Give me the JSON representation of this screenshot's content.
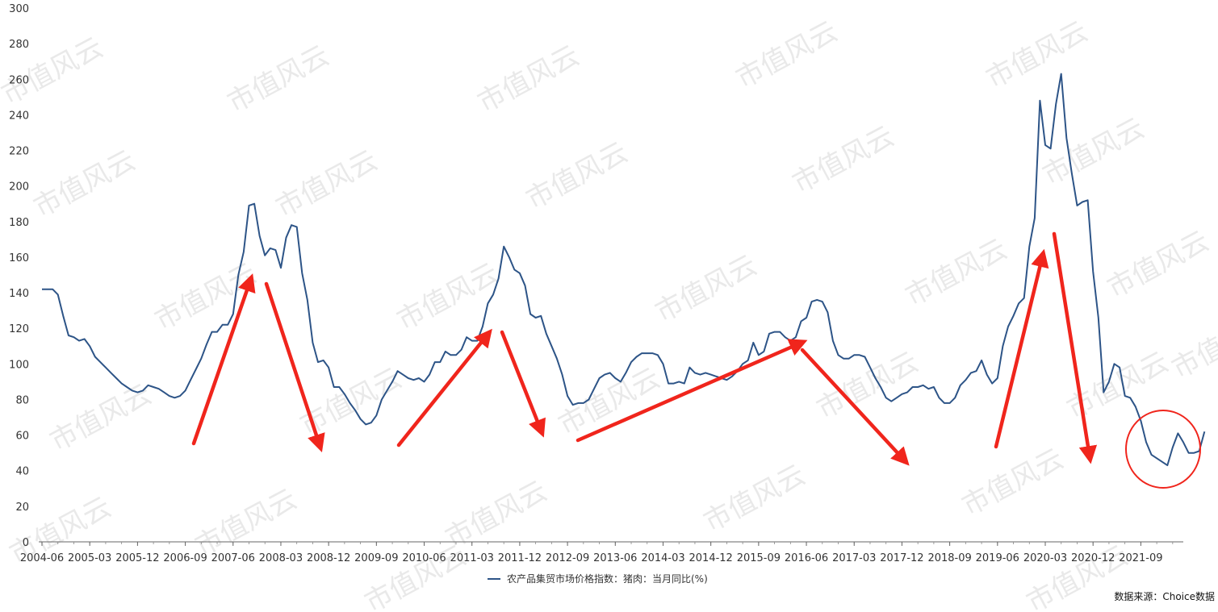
{
  "chart_data": {
    "type": "line",
    "ylim": [
      0,
      300
    ],
    "y_ticks": [
      "0",
      "20",
      "40",
      "60",
      "80",
      "100",
      "120",
      "140",
      "160",
      "180",
      "200",
      "220",
      "240",
      "260",
      "280",
      "300"
    ],
    "x_tick_labels": [
      "2004-06",
      "2005-03",
      "2005-12",
      "2006-09",
      "2007-06",
      "2008-03",
      "2008-12",
      "2009-09",
      "2010-06",
      "2011-03",
      "2011-12",
      "2012-09",
      "2013-06",
      "2014-03",
      "2014-12",
      "2015-09",
      "2016-06",
      "2017-03",
      "2017-12",
      "2018-09",
      "2019-06",
      "2020-03",
      "2020-12",
      "2021-09"
    ],
    "x_start": "2004-06",
    "x_end": "2022-05",
    "grid": false,
    "legend_position": "bottom-center",
    "series": [
      {
        "name": "农产品集贸市场价格指数：猪肉：当月同比(%)",
        "color": "#2d5487",
        "values": [
          142,
          142,
          142,
          139,
          127,
          116,
          115,
          113,
          114,
          110,
          104,
          101,
          98,
          95,
          92,
          89,
          87,
          85,
          84,
          85,
          88,
          87,
          86,
          84,
          82,
          81,
          82,
          85,
          91,
          97,
          103,
          111,
          118,
          118,
          122,
          122,
          128,
          150,
          163,
          189,
          190,
          172,
          161,
          165,
          164,
          154,
          171,
          178,
          177,
          151,
          136,
          112,
          101,
          102,
          98,
          87,
          87,
          83,
          78,
          74,
          69,
          66,
          67,
          71,
          80,
          85,
          90,
          96,
          94,
          92,
          91,
          92,
          90,
          94,
          101,
          101,
          107,
          105,
          105,
          108,
          115,
          113,
          113,
          121,
          134,
          139,
          148,
          166,
          160,
          153,
          151,
          144,
          128,
          126,
          127,
          117,
          110,
          103,
          94,
          82,
          77,
          78,
          78,
          80,
          86,
          92,
          94,
          95,
          92,
          90,
          95,
          101,
          104,
          106,
          106,
          106,
          105,
          100,
          89,
          89,
          90,
          89,
          98,
          95,
          94,
          95,
          94,
          93,
          92,
          91,
          93,
          96,
          100,
          102,
          112,
          105,
          107,
          117,
          118,
          118,
          115,
          113,
          115,
          124,
          126,
          135,
          136,
          135,
          129,
          113,
          105,
          103,
          103,
          105,
          105,
          104,
          98,
          92,
          87,
          81,
          79,
          81,
          83,
          84,
          87,
          87,
          88,
          86,
          87,
          81,
          78,
          78,
          81,
          88,
          91,
          95,
          96,
          102,
          94,
          89,
          92,
          110,
          121,
          127,
          134,
          137,
          166,
          182,
          248,
          223,
          221,
          246,
          263,
          227,
          207,
          189,
          191,
          192,
          152,
          126,
          84,
          90,
          100,
          98,
          82,
          81,
          76,
          68,
          56,
          49,
          47,
          45,
          43,
          53,
          61,
          56,
          50,
          50,
          51,
          62
        ]
      }
    ]
  },
  "legend": {
    "label": "农产品集贸市场价格指数：猪肉：当月同比(%)"
  },
  "source": {
    "text": "数据来源：Choice数据"
  },
  "watermark": {
    "text": "市值风云"
  },
  "annotations": {
    "arrow_color": "#f0251c",
    "circle_color": "#f0251c"
  }
}
